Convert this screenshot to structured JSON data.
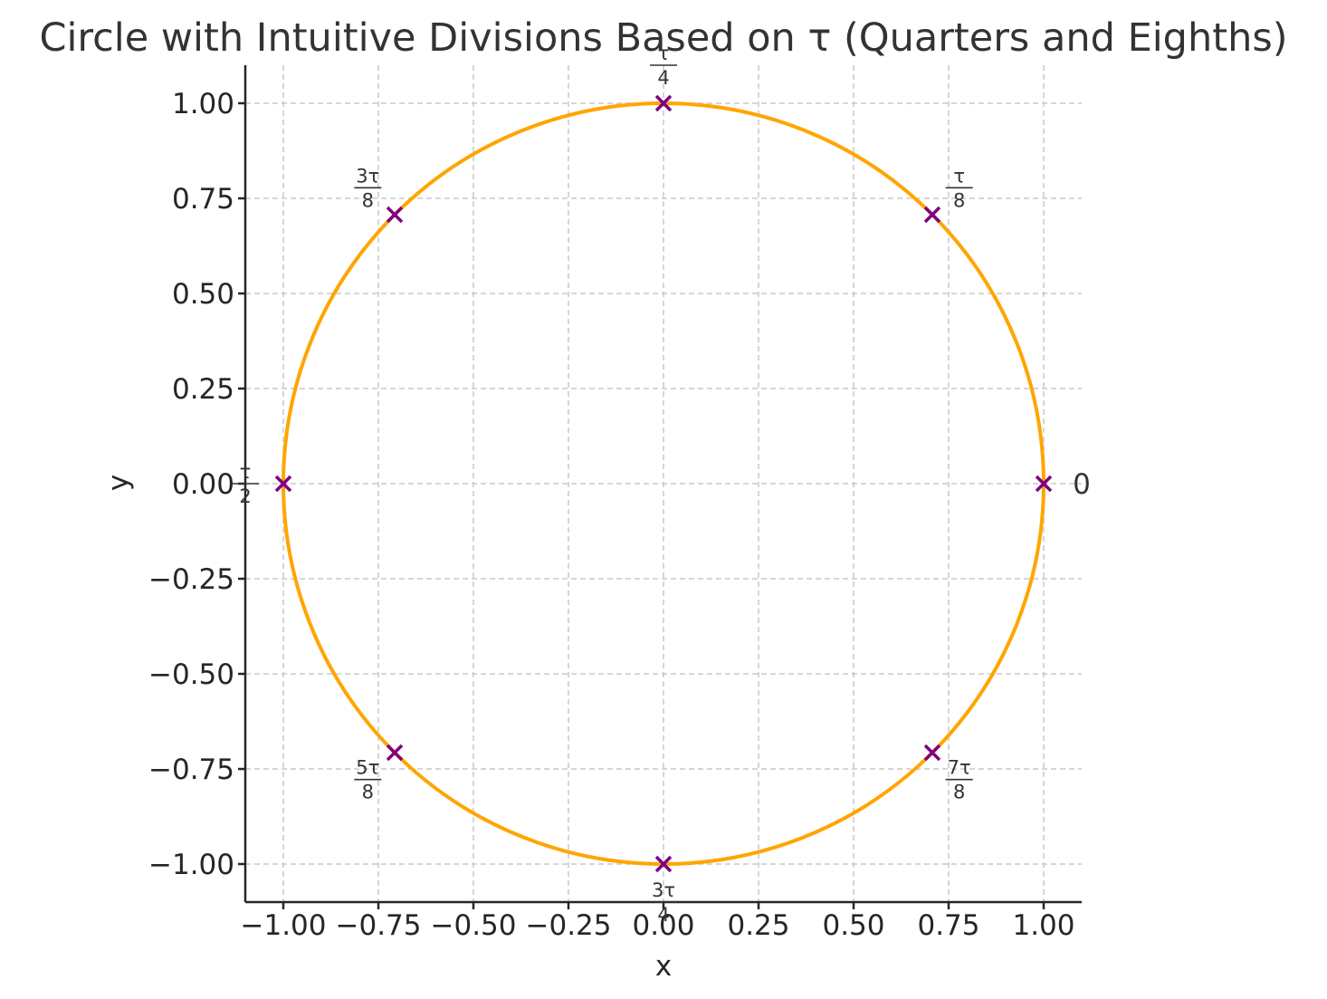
{
  "chart_data": {
    "type": "scatter",
    "title": "Circle with Intuitive Divisions Based on τ (Quarters and Eighths)",
    "xlabel": "x",
    "ylabel": "y",
    "xlim": [
      -1.1,
      1.1
    ],
    "ylim": [
      -1.1,
      1.1
    ],
    "xticks": [
      -1.0,
      -0.75,
      -0.5,
      -0.25,
      0.0,
      0.25,
      0.5,
      0.75,
      1.0
    ],
    "yticks": [
      -1.0,
      -0.75,
      -0.5,
      -0.25,
      0.0,
      0.25,
      0.5,
      0.75,
      1.0
    ],
    "xtick_labels": [
      "−1.00",
      "−0.75",
      "−0.50",
      "−0.25",
      "0.00",
      "0.25",
      "0.50",
      "0.75",
      "1.00"
    ],
    "ytick_labels": [
      "−1.00",
      "−0.75",
      "−0.50",
      "−0.25",
      "0.00",
      "0.25",
      "0.50",
      "0.75",
      "1.00"
    ],
    "grid": true,
    "curve": {
      "shape": "unit-circle",
      "center": [
        0,
        0
      ],
      "radius": 1,
      "color": "#FFA500"
    },
    "marker_color": "#800080",
    "marker_symbol": "x",
    "points": [
      {
        "x": 1.0,
        "y": 0.0,
        "num": "",
        "den": "",
        "plain": "0"
      },
      {
        "x": 0.7071,
        "y": 0.7071,
        "num": "τ",
        "den": "8",
        "plain": ""
      },
      {
        "x": 0.0,
        "y": 1.0,
        "num": "τ",
        "den": "4",
        "plain": ""
      },
      {
        "x": -0.7071,
        "y": 0.7071,
        "num": "3τ",
        "den": "8",
        "plain": ""
      },
      {
        "x": -1.0,
        "y": 0.0,
        "num": "τ",
        "den": "2",
        "plain": ""
      },
      {
        "x": -0.7071,
        "y": -0.7071,
        "num": "5τ",
        "den": "8",
        "plain": ""
      },
      {
        "x": 0.0,
        "y": -1.0,
        "num": "3τ",
        "den": "4",
        "plain": ""
      },
      {
        "x": 0.7071,
        "y": -0.7071,
        "num": "7τ",
        "den": "8",
        "plain": ""
      }
    ]
  }
}
